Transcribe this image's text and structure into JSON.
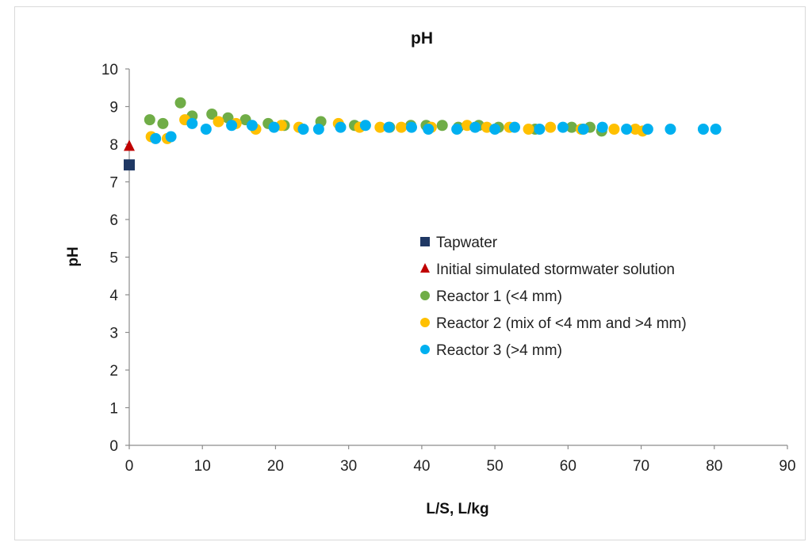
{
  "chart_data": {
    "type": "scatter",
    "title": "pH",
    "xlabel": "L/S, L/kg",
    "ylabel": "pH",
    "xlim": [
      0,
      90
    ],
    "ylim": [
      0,
      10
    ],
    "xticks": [
      "0",
      "10",
      "20",
      "30",
      "40",
      "50",
      "60",
      "70",
      "80",
      "90"
    ],
    "yticks": [
      "0",
      "1",
      "2",
      "3",
      "4",
      "5",
      "6",
      "7",
      "8",
      "9",
      "10"
    ],
    "grid": false,
    "legend_position": "center-right",
    "series": [
      {
        "name": "Tapwater",
        "marker": "square",
        "color": "#1f3864",
        "points": [
          [
            0,
            7.45
          ]
        ]
      },
      {
        "name": "Initial simulated stormwater solution",
        "marker": "triangle",
        "color": "#c00000",
        "points": [
          [
            0,
            7.95
          ]
        ]
      },
      {
        "name": "Reactor 1 (<4 mm)",
        "marker": "circle",
        "color": "#70ad47",
        "points": [
          [
            2.8,
            8.65
          ],
          [
            4.6,
            8.55
          ],
          [
            7.0,
            9.1
          ],
          [
            8.6,
            8.75
          ],
          [
            11.3,
            8.8
          ],
          [
            13.5,
            8.7
          ],
          [
            15.9,
            8.65
          ],
          [
            19.0,
            8.55
          ],
          [
            21.2,
            8.5
          ],
          [
            26.2,
            8.6
          ],
          [
            30.8,
            8.5
          ],
          [
            35.6,
            8.45
          ],
          [
            38.5,
            8.5
          ],
          [
            40.6,
            8.5
          ],
          [
            42.8,
            8.5
          ],
          [
            45.0,
            8.45
          ],
          [
            47.8,
            8.5
          ],
          [
            50.5,
            8.45
          ],
          [
            55.5,
            8.4
          ],
          [
            60.5,
            8.45
          ],
          [
            63.0,
            8.45
          ],
          [
            64.6,
            8.35
          ]
        ]
      },
      {
        "name": "Reactor 2 (mix of <4 mm and >4 mm)",
        "marker": "circle",
        "color": "#ffc000",
        "points": [
          [
            3.0,
            8.2
          ],
          [
            5.2,
            8.15
          ],
          [
            7.6,
            8.65
          ],
          [
            12.2,
            8.6
          ],
          [
            14.6,
            8.55
          ],
          [
            17.3,
            8.4
          ],
          [
            20.8,
            8.5
          ],
          [
            23.2,
            8.45
          ],
          [
            28.6,
            8.55
          ],
          [
            31.5,
            8.45
          ],
          [
            34.3,
            8.45
          ],
          [
            37.2,
            8.45
          ],
          [
            41.3,
            8.45
          ],
          [
            46.2,
            8.5
          ],
          [
            48.9,
            8.45
          ],
          [
            52.0,
            8.45
          ],
          [
            54.6,
            8.4
          ],
          [
            57.6,
            8.45
          ],
          [
            61.8,
            8.4
          ],
          [
            66.3,
            8.4
          ],
          [
            69.2,
            8.4
          ],
          [
            70.2,
            8.35
          ]
        ]
      },
      {
        "name": "Reactor 3 (>4 mm)",
        "marker": "circle",
        "color": "#00b0f0",
        "points": [
          [
            3.6,
            8.15
          ],
          [
            5.7,
            8.2
          ],
          [
            8.6,
            8.55
          ],
          [
            10.5,
            8.4
          ],
          [
            14.0,
            8.5
          ],
          [
            16.8,
            8.5
          ],
          [
            19.8,
            8.45
          ],
          [
            23.8,
            8.4
          ],
          [
            25.9,
            8.4
          ],
          [
            28.9,
            8.45
          ],
          [
            32.3,
            8.5
          ],
          [
            35.5,
            8.45
          ],
          [
            38.6,
            8.45
          ],
          [
            40.9,
            8.4
          ],
          [
            44.8,
            8.4
          ],
          [
            47.3,
            8.45
          ],
          [
            50.0,
            8.4
          ],
          [
            52.7,
            8.45
          ],
          [
            56.1,
            8.4
          ],
          [
            59.3,
            8.45
          ],
          [
            62.1,
            8.4
          ],
          [
            64.7,
            8.45
          ],
          [
            68.0,
            8.4
          ],
          [
            70.9,
            8.4
          ],
          [
            74.0,
            8.4
          ],
          [
            78.5,
            8.4
          ],
          [
            80.2,
            8.4
          ]
        ]
      }
    ]
  }
}
